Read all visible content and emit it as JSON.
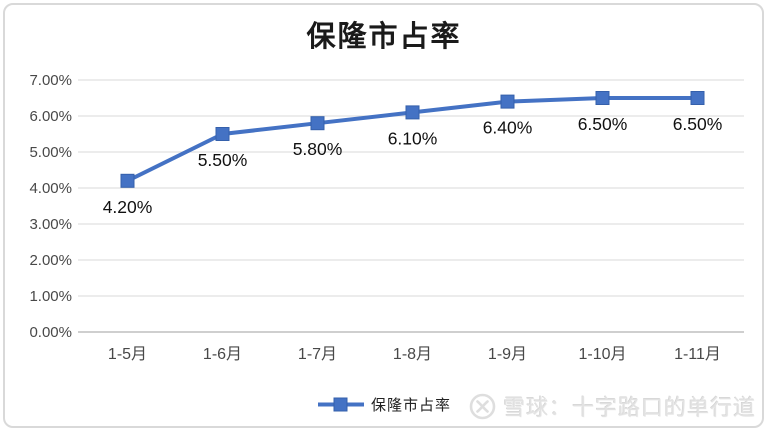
{
  "chart_data": {
    "type": "line",
    "title": "保隆市占率",
    "categories": [
      "1-5月",
      "1-6月",
      "1-7月",
      "1-8月",
      "1-9月",
      "1-10月",
      "1-11月"
    ],
    "series": [
      {
        "name": "保隆市占率",
        "values": [
          4.2,
          5.5,
          5.8,
          6.1,
          6.4,
          6.5,
          6.5
        ]
      }
    ],
    "data_labels": [
      "4.20%",
      "5.50%",
      "5.80%",
      "6.10%",
      "6.40%",
      "6.50%",
      "6.50%"
    ],
    "yticks": [
      "0.00%",
      "1.00%",
      "2.00%",
      "3.00%",
      "4.00%",
      "5.00%",
      "6.00%",
      "7.00%"
    ],
    "ylim": [
      0,
      7
    ],
    "ytick_step": 1,
    "grid": true,
    "legend_position": "bottom",
    "data_label_position": "below",
    "line_color": "#4472C4",
    "marker_border_color": "#3560AB",
    "gridline_color": "#e0e0e0",
    "axis_color": "#cfcfcf"
  },
  "watermark": {
    "icon": "xueqiu-logo",
    "text": "雪球：十字路口的单行道"
  }
}
